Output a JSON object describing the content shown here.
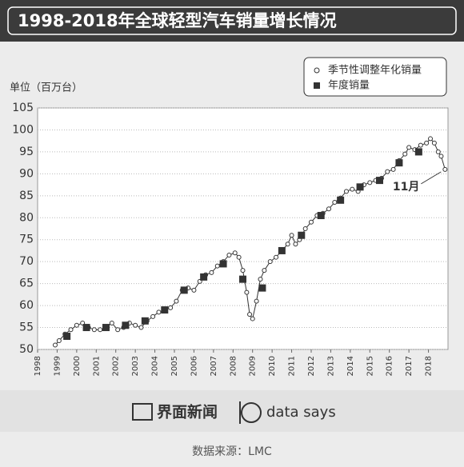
{
  "chart_data": {
    "type": "line",
    "title": "1998-2018年全球轻型汽车销量增长情况",
    "y_label": "单位（百万台）",
    "annotation": "11月",
    "xlim": [
      1998,
      2019
    ],
    "ylim": [
      50,
      105
    ],
    "xticks": [
      1998,
      1999,
      2000,
      2001,
      2002,
      2003,
      2004,
      2005,
      2006,
      2007,
      2008,
      2009,
      2010,
      2011,
      2012,
      2013,
      2014,
      2015,
      2016,
      2017,
      2018
    ],
    "yticks": [
      50,
      55,
      60,
      65,
      70,
      75,
      80,
      85,
      90,
      95,
      100,
      105
    ],
    "grid": true,
    "legend": "top-right",
    "series": [
      {
        "name": "季节性调整年化销量",
        "color": "#333333",
        "marker": "circle",
        "x": [
          1998.9,
          1999.1,
          1999.4,
          1999.7,
          2000.0,
          2000.3,
          2000.6,
          2000.9,
          2001.2,
          2001.5,
          2001.8,
          2002.1,
          2002.4,
          2002.7,
          2003.0,
          2003.3,
          2003.6,
          2003.9,
          2004.2,
          2004.5,
          2004.8,
          2005.1,
          2005.4,
          2005.7,
          2006.0,
          2006.3,
          2006.6,
          2006.9,
          2007.2,
          2007.5,
          2007.8,
          2008.1,
          2008.3,
          2008.5,
          2008.7,
          2008.85,
          2009.0,
          2009.2,
          2009.4,
          2009.6,
          2009.9,
          2010.2,
          2010.5,
          2010.8,
          2011.0,
          2011.2,
          2011.4,
          2011.7,
          2012.0,
          2012.3,
          2012.6,
          2012.9,
          2013.2,
          2013.5,
          2013.8,
          2014.1,
          2014.4,
          2014.7,
          2015.0,
          2015.3,
          2015.6,
          2015.9,
          2016.2,
          2016.5,
          2016.8,
          2017.0,
          2017.3,
          2017.6,
          2017.9,
          2018.1,
          2018.3,
          2018.5,
          2018.65,
          2018.85
        ],
        "values": [
          51,
          52,
          53.5,
          54.5,
          55.5,
          56,
          55,
          54.5,
          54.5,
          55,
          56,
          54.5,
          55,
          56,
          55.5,
          55,
          56.5,
          57.5,
          58.5,
          59,
          59.5,
          61,
          63.5,
          64,
          63.5,
          65.5,
          67,
          67.5,
          69,
          70,
          71.5,
          72,
          71,
          68,
          63,
          58,
          57,
          61,
          66,
          68,
          70,
          71,
          72.5,
          74,
          76,
          74,
          75,
          77.5,
          79,
          80.5,
          81,
          82,
          83.5,
          84.5,
          86,
          86.5,
          86,
          87.5,
          88,
          88.5,
          89,
          90.5,
          91,
          93,
          94.5,
          96,
          95.5,
          96.5,
          97,
          98,
          97,
          95,
          94,
          91
        ]
      },
      {
        "name": "年度销量",
        "color": "#333333",
        "marker": "square",
        "x": [
          1999.5,
          2000.5,
          2001.5,
          2002.5,
          2003.5,
          2004.5,
          2005.5,
          2006.5,
          2007.5,
          2008.5,
          2009.5,
          2010.5,
          2011.5,
          2012.5,
          2013.5,
          2014.5,
          2015.5,
          2016.5,
          2017.5
        ],
        "values": [
          53,
          55,
          55,
          55.5,
          56.5,
          59,
          63.5,
          66.5,
          69.5,
          66,
          64,
          72.5,
          76,
          80.5,
          84,
          87,
          88.5,
          92.5,
          95
        ]
      }
    ]
  },
  "footer": {
    "brand": "界面新闻",
    "partner": "data says",
    "source": "数据来源：LMC"
  }
}
